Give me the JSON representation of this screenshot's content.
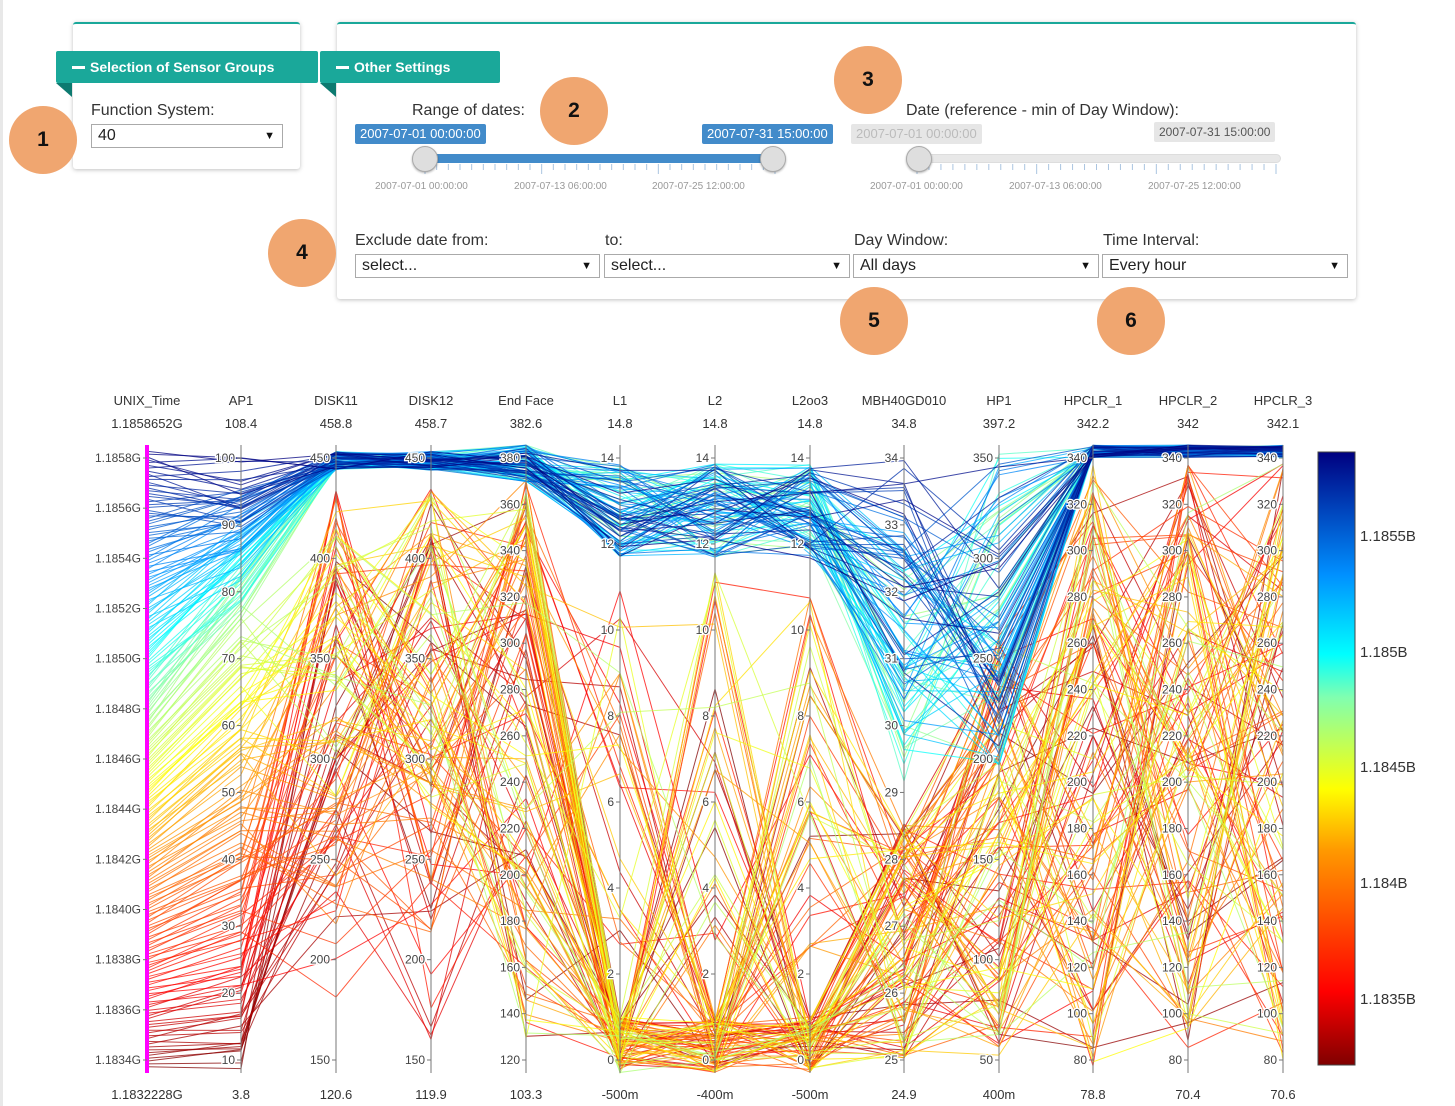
{
  "sensor_groups": {
    "tab_label": "Selection of Sensor Groups",
    "function_system_label": "Function System:",
    "function_system_value": "40"
  },
  "other_settings": {
    "tab_label": "Other Settings",
    "range_label": "Range of dates:",
    "range_from": "2007-07-01 00:00:00",
    "range_to": "2007-07-31 15:00:00",
    "range_ticks": [
      "2007-07-01 00:00:00",
      "2007-07-13 06:00:00",
      "2007-07-25 12:00:00"
    ],
    "ref_label": "Date (reference - min of Day Window):",
    "ref_from": "2007-07-01 00:00:00",
    "ref_to": "2007-07-31 15:00:00",
    "ref_ticks": [
      "2007-07-01 00:00:00",
      "2007-07-13 06:00:00",
      "2007-07-25 12:00:00"
    ],
    "exclude_from_label": "Exclude date from:",
    "exclude_from_value": "select...",
    "exclude_to_label": "to:",
    "exclude_to_value": "select...",
    "day_window_label": "Day Window:",
    "day_window_value": "All days",
    "time_interval_label": "Time Interval:",
    "time_interval_value": "Every hour"
  },
  "badges": [
    "1",
    "2",
    "3",
    "4",
    "5",
    "6"
  ],
  "colors": {
    "accent": "#1aa89a",
    "slider": "#428bca",
    "badge": "#f0a670"
  },
  "chart_data": {
    "type": "parallel-coordinates",
    "colorscale": "jet",
    "color_by": "UNIX_Time",
    "colorbar_ticks": [
      "1.1855B",
      "1.185B",
      "1.1845B",
      "1.184B",
      "1.1835B"
    ],
    "dimensions": [
      {
        "name": "UNIX_Time",
        "max": "1.1858652G",
        "min": "1.1832228G",
        "ticks": [
          "1.1858G",
          "1.1856G",
          "1.1854G",
          "1.1852G",
          "1.1850G",
          "1.1848G",
          "1.1846G",
          "1.1844G",
          "1.1842G",
          "1.1840G",
          "1.1838G",
          "1.1836G",
          "1.1834G"
        ]
      },
      {
        "name": "AP1",
        "max": "108.4",
        "min": "3.8",
        "ticks": [
          "100",
          "90",
          "80",
          "70",
          "60",
          "50",
          "40",
          "30",
          "20",
          "10"
        ]
      },
      {
        "name": "DISK11",
        "max": "458.8",
        "min": "120.6",
        "ticks": [
          "450",
          "400",
          "350",
          "300",
          "250",
          "200",
          "150"
        ]
      },
      {
        "name": "DISK12",
        "max": "458.7",
        "min": "119.9",
        "ticks": [
          "450",
          "400",
          "350",
          "300",
          "250",
          "200",
          "150"
        ]
      },
      {
        "name": "End Face",
        "max": "382.6",
        "min": "103.3",
        "ticks": [
          "380",
          "360",
          "340",
          "320",
          "300",
          "280",
          "260",
          "240",
          "220",
          "200",
          "180",
          "160",
          "140",
          "120"
        ]
      },
      {
        "name": "L1",
        "max": "14.8",
        "min": "-500m",
        "ticks": [
          "14",
          "12",
          "10",
          "8",
          "6",
          "4",
          "2",
          "0"
        ]
      },
      {
        "name": "L2",
        "max": "14.8",
        "min": "-400m",
        "ticks": [
          "14",
          "12",
          "10",
          "8",
          "6",
          "4",
          "2",
          "0"
        ]
      },
      {
        "name": "L2oo3",
        "max": "14.8",
        "min": "-500m",
        "ticks": [
          "14",
          "12",
          "10",
          "8",
          "6",
          "4",
          "2",
          "0"
        ]
      },
      {
        "name": "MBH40GD010",
        "max": "34.8",
        "min": "24.9",
        "ticks": [
          "34",
          "33",
          "32",
          "31",
          "30",
          "29",
          "28",
          "27",
          "26",
          "25"
        ]
      },
      {
        "name": "HP1",
        "max": "397.2",
        "min": "400m",
        "ticks": [
          "350",
          "300",
          "250",
          "200",
          "150",
          "100",
          "50"
        ]
      },
      {
        "name": "HPCLR_1",
        "max": "342.2",
        "min": "78.8",
        "ticks": [
          "340",
          "320",
          "300",
          "280",
          "260",
          "240",
          "220",
          "200",
          "180",
          "160",
          "140",
          "120",
          "100",
          "80"
        ]
      },
      {
        "name": "HPCLR_2",
        "max": "342",
        "min": "70.4",
        "ticks": [
          "340",
          "320",
          "300",
          "280",
          "260",
          "240",
          "220",
          "200",
          "180",
          "160",
          "140",
          "120",
          "100",
          "80"
        ]
      },
      {
        "name": "HPCLR_3",
        "max": "342.1",
        "min": "70.6",
        "ticks": [
          "340",
          "320",
          "300",
          "280",
          "260",
          "240",
          "220",
          "200",
          "180",
          "160",
          "140",
          "120",
          "100",
          "80"
        ]
      }
    ]
  }
}
